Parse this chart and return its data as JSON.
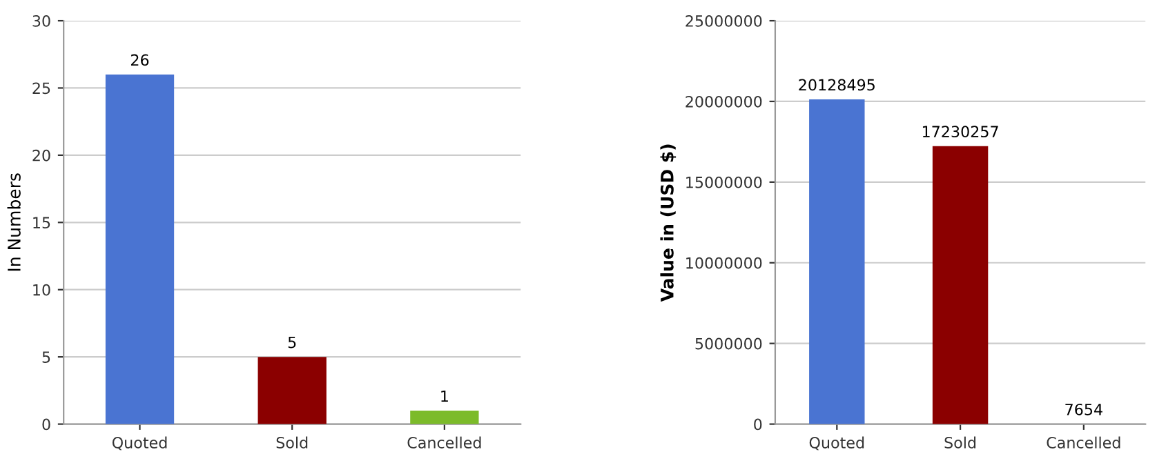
{
  "chart_data": [
    {
      "type": "bar",
      "ylabel": "In Numbers",
      "categories": [
        "Quoted",
        "Sold",
        "Cancelled"
      ],
      "values": [
        26,
        5,
        1
      ],
      "colors": [
        "#4a74d2",
        "#8b0000",
        "#7cbb2a"
      ],
      "ylim": [
        0,
        30
      ],
      "yticks": [
        0,
        5,
        10,
        15,
        20,
        25,
        30
      ],
      "grid": "y",
      "data_labels": true,
      "legend": false
    },
    {
      "type": "bar",
      "ylabel": "Value in (USD $)",
      "categories": [
        "Quoted",
        "Sold",
        "Cancelled"
      ],
      "values": [
        20128495,
        17230257,
        7654
      ],
      "colors": [
        "#4a74d2",
        "#8b0000",
        "#7cbb2a"
      ],
      "ylim": [
        0,
        25000000
      ],
      "yticks": [
        0,
        5000000,
        10000000,
        15000000,
        20000000,
        25000000
      ],
      "grid": "y",
      "data_labels": true,
      "legend": false
    }
  ]
}
